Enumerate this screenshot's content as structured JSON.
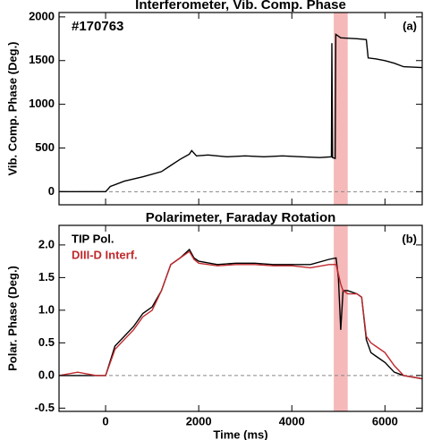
{
  "chart_data": [
    {
      "type": "line",
      "title": "Interferometer, Vib. Comp. Phase",
      "y_label": "Vib. Comp. Phase (Deg.)",
      "annotations": [
        "#170763",
        "(a)"
      ],
      "xlim": [
        -1000,
        6800
      ],
      "xticks": [
        0,
        2000,
        4000,
        6000
      ],
      "ylim": [
        -150,
        2050
      ],
      "yticks": [
        0,
        500,
        1000,
        1500,
        2000
      ],
      "zero_line": true,
      "shade": [
        4900,
        5200
      ],
      "shade_color": "#f6b9b9",
      "x": [
        -1000,
        -600,
        -200,
        0,
        100,
        400,
        800,
        1200,
        1400,
        1600,
        1800,
        1850,
        1950,
        2200,
        2600,
        3000,
        3400,
        3800,
        4200,
        4600,
        4850,
        4860,
        4875,
        4930,
        4945,
        5000,
        5050,
        5400,
        5600,
        5640,
        5800,
        6000,
        6200,
        6400,
        6800
      ],
      "series": [
        {
          "name": "Vib. Comp. Phase",
          "color": "#000000",
          "values": [
            0,
            0,
            0,
            0,
            60,
            120,
            170,
            230,
            300,
            370,
            430,
            470,
            410,
            420,
            400,
            410,
            400,
            410,
            400,
            390,
            400,
            1700,
            390,
            380,
            1800,
            1780,
            1760,
            1750,
            1740,
            1530,
            1520,
            1500,
            1470,
            1430,
            1420
          ]
        }
      ]
    },
    {
      "type": "line",
      "title": "Polarimeter, Faraday Rotation",
      "y_label": "Polar. Phase (Deg.)",
      "x_label": "Time (ms)",
      "annotations": [
        "(b)"
      ],
      "xlim": [
        -1000,
        6800
      ],
      "xticks": [
        0,
        2000,
        4000,
        6000
      ],
      "ylim": [
        -0.55,
        2.3
      ],
      "yticks": [
        -0.5,
        {
          "value": 0,
          "label": "0.0"
        },
        0.5,
        {
          "value": 1,
          "label": "1.0"
        },
        1.5,
        {
          "value": 2,
          "label": "2.0"
        }
      ],
      "zero_line": true,
      "shade": [
        4900,
        5200
      ],
      "shade_color": "#f6b9b9",
      "legend": "upper left",
      "x": [
        -1000,
        -600,
        -200,
        0,
        200,
        400,
        600,
        800,
        1000,
        1200,
        1400,
        1600,
        1800,
        1900,
        2000,
        2400,
        2800,
        3200,
        3600,
        4000,
        4400,
        4800,
        4950,
        5000,
        5050,
        5100,
        5200,
        5400,
        5500,
        5600,
        5700,
        5800,
        6000,
        6200,
        6400,
        6800
      ],
      "series": [
        {
          "name": "TIP Pol.",
          "color": "#000000",
          "values": [
            0,
            0,
            0,
            0,
            0.45,
            0.6,
            0.75,
            0.95,
            1.05,
            1.3,
            1.7,
            1.8,
            1.93,
            1.8,
            1.75,
            1.7,
            1.72,
            1.72,
            1.7,
            1.7,
            1.7,
            1.78,
            1.8,
            1.5,
            0.7,
            1.3,
            1.3,
            1.25,
            1.2,
            0.55,
            0.35,
            0.3,
            0.2,
            0.05,
            0,
            -0.05
          ]
        },
        {
          "name": "DIII-D Interf.",
          "color": "#c0282d",
          "values": [
            0,
            0.05,
            0,
            0,
            0.4,
            0.55,
            0.7,
            0.9,
            1.0,
            1.3,
            1.7,
            1.8,
            1.9,
            1.78,
            1.72,
            1.68,
            1.7,
            1.7,
            1.68,
            1.68,
            1.65,
            1.7,
            1.7,
            1.55,
            1.4,
            1.3,
            1.25,
            1.25,
            1.2,
            0.6,
            0.5,
            0.45,
            0.35,
            0.15,
            0,
            -0.05
          ]
        }
      ]
    }
  ]
}
